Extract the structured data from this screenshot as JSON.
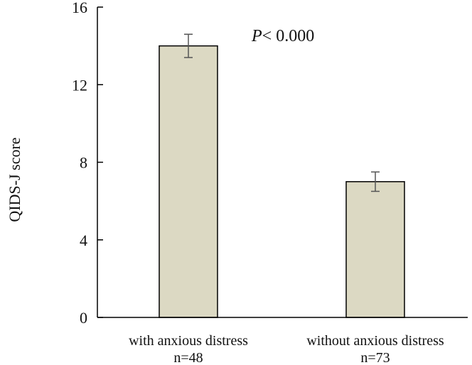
{
  "chart_data": {
    "type": "bar",
    "categories": [
      "with anxious distress",
      "without anxious distress"
    ],
    "category_sublabels": [
      "n=48",
      "n=73"
    ],
    "values": [
      14.0,
      7.0
    ],
    "error": [
      0.6,
      0.5
    ],
    "xlabel": "",
    "ylabel": "QIDS-J score",
    "ylim": [
      0,
      16
    ],
    "yticks": [
      0,
      4,
      8,
      12,
      16
    ],
    "ytick_labels": [
      "0",
      "4",
      "8",
      "12",
      "16"
    ],
    "grid": false,
    "bar_color": "#dcd9c3",
    "annotation": {
      "p_symbol": "P",
      "text": "< 0.000"
    }
  }
}
